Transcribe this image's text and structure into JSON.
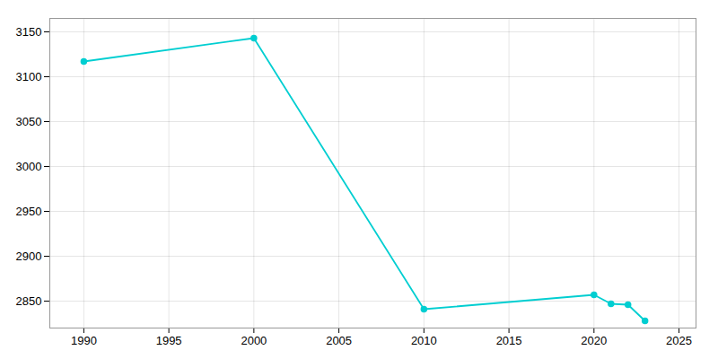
{
  "chart_data": {
    "type": "line",
    "x": [
      1990,
      2000,
      2010,
      2020,
      2021,
      2022,
      2023
    ],
    "values": [
      3117,
      3143,
      2841,
      2857,
      2847,
      2846,
      2828
    ],
    "color": "#00CED1",
    "marker": "circle",
    "xlim": [
      1988,
      2026
    ],
    "xticks": [
      1990,
      1995,
      2000,
      2005,
      2010,
      2015,
      2020,
      2025
    ],
    "ylim": [
      2820,
      3165
    ],
    "yticks": [
      2850,
      2900,
      2950,
      3000,
      3050,
      3100,
      3150
    ],
    "grid": true
  }
}
